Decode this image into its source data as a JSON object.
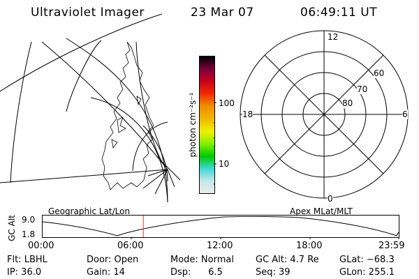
{
  "header": {
    "instrument": "Ultraviolet Imager",
    "date": "23 Mar 07",
    "time": "06:49:11 UT"
  },
  "colorbar": {
    "unit_label": "photon cm⁻²s⁻¹",
    "tick_high": "100",
    "tick_low": "10",
    "colors": [
      "#ececec",
      "#c8e6e6",
      "#3fd7d7",
      "#00c800",
      "#7ef000",
      "#f0f000",
      "#f0b400",
      "#f08c00",
      "#f02800",
      "#c8001e",
      "#78003c",
      "#000000"
    ]
  },
  "left_map": {
    "caption": "Geographic Lat/Lon"
  },
  "polar_plot": {
    "caption": "Apex MLat/MLT",
    "label_top": "12",
    "label_bottom": "0",
    "label_left": "18",
    "label_right": "6",
    "ring_60": "60",
    "ring_70": "70",
    "ring_80": "80"
  },
  "timeline": {
    "ylabel": "GC Alt",
    "y_top": "9.0",
    "y_bottom": "1.8",
    "ticks": [
      "00:00",
      "06:00",
      "12:00",
      "18:00",
      "23:59"
    ],
    "current_time_hours": 6.82
  },
  "params": {
    "flt": "Flt: LBHL",
    "ip": "IP: 36.0",
    "door": "Door: Open",
    "gain": "Gain: 14",
    "mode": "Mode: Normal",
    "dsp": "Dsp:      6.5",
    "gc_alt": "GC Alt: 4.7 Re",
    "seq": "Seq: 39",
    "glat": "GLat: −68.3",
    "glon": "GLon: 255.1"
  }
}
